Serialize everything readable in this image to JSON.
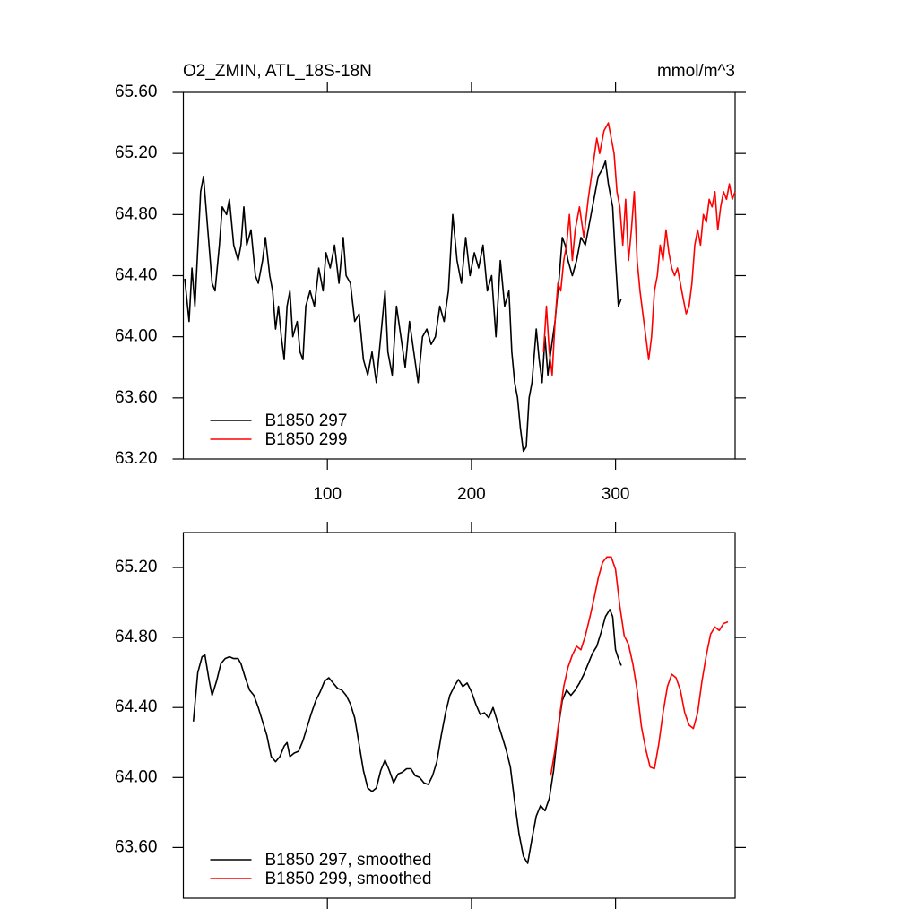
{
  "chart_data": [
    {
      "type": "line",
      "title": "O2_ZMIN, ATL_18S-18N",
      "units": "mmol/m^3",
      "xlim": [
        0,
        383
      ],
      "xticks": [
        100,
        200,
        300
      ],
      "show_xtick_labels": true,
      "ylim": [
        63.2,
        65.6
      ],
      "yticks": [
        {
          "value": 63.2,
          "label": "63.20"
        },
        {
          "value": 63.6,
          "label": "63.60"
        },
        {
          "value": 64.0,
          "label": "64.00"
        },
        {
          "value": 64.4,
          "label": "64.40"
        },
        {
          "value": 64.8,
          "label": "64.80"
        },
        {
          "value": 65.2,
          "label": "65.20"
        },
        {
          "value": 65.6,
          "label": "65.60"
        }
      ],
      "legend": "lower left",
      "series": [
        {
          "name": "B1850 297",
          "color": "#000000",
          "x": [
            1,
            4,
            6,
            8,
            12,
            14,
            17,
            20,
            22,
            25,
            27,
            30,
            32,
            35,
            38,
            40,
            42,
            44,
            47,
            50,
            52,
            55,
            57,
            60,
            62,
            64,
            66,
            68,
            70,
            72,
            74,
            76,
            79,
            81,
            83,
            85,
            88,
            91,
            94,
            97,
            99,
            102,
            105,
            108,
            111,
            113,
            116,
            119,
            122,
            125,
            128,
            131,
            134,
            137,
            140,
            142,
            145,
            148,
            151,
            154,
            157,
            160,
            163,
            166,
            169,
            172,
            175,
            178,
            181,
            184,
            187,
            190,
            193,
            196,
            199,
            202,
            205,
            208,
            211,
            214,
            217,
            220,
            223,
            226,
            228,
            230,
            232,
            234,
            236,
            238,
            240,
            242,
            245,
            247,
            249,
            251,
            253,
            255,
            258,
            261,
            263,
            265,
            267,
            270,
            273,
            276,
            279,
            282,
            285,
            288,
            291,
            293,
            295,
            298,
            300,
            302,
            304
          ],
          "values": [
            64.38,
            64.1,
            64.45,
            64.2,
            64.95,
            65.05,
            64.7,
            64.35,
            64.3,
            64.6,
            64.85,
            64.8,
            64.9,
            64.6,
            64.5,
            64.6,
            64.85,
            64.6,
            64.7,
            64.4,
            64.35,
            64.5,
            64.65,
            64.4,
            64.3,
            64.05,
            64.2,
            64.0,
            63.85,
            64.2,
            64.3,
            64.0,
            64.1,
            63.9,
            63.85,
            64.2,
            64.3,
            64.2,
            64.45,
            64.3,
            64.55,
            64.45,
            64.6,
            64.35,
            64.65,
            64.4,
            64.35,
            64.1,
            64.15,
            63.85,
            63.75,
            63.9,
            63.7,
            64.0,
            64.3,
            63.9,
            63.75,
            64.2,
            64.0,
            63.8,
            64.1,
            63.9,
            63.7,
            64.0,
            64.05,
            63.95,
            64.0,
            64.2,
            64.1,
            64.3,
            64.8,
            64.5,
            64.35,
            64.65,
            64.4,
            64.55,
            64.45,
            64.6,
            64.3,
            64.4,
            64.0,
            64.5,
            64.2,
            64.3,
            63.9,
            63.7,
            63.6,
            63.4,
            63.25,
            63.28,
            63.6,
            63.7,
            64.05,
            63.85,
            63.7,
            64.0,
            63.75,
            63.9,
            64.1,
            64.4,
            64.65,
            64.6,
            64.5,
            64.4,
            64.5,
            64.65,
            64.6,
            64.75,
            64.9,
            65.05,
            65.1,
            65.15,
            65.0,
            64.85,
            64.5,
            64.2,
            64.25
          ]
        },
        {
          "name": "B1850 299",
          "color": "#ff0000",
          "x": [
            250,
            252,
            254,
            256,
            258,
            260,
            262,
            264,
            266,
            268,
            270,
            272,
            275,
            278,
            281,
            284,
            287,
            289,
            292,
            295,
            297,
            299,
            301,
            303,
            305,
            307,
            309,
            311,
            313,
            315,
            317,
            319,
            321,
            323,
            325,
            327,
            329,
            331,
            333,
            335,
            337,
            339,
            341,
            343,
            345,
            347,
            349,
            351,
            353,
            355,
            357,
            359,
            361,
            363,
            365,
            367,
            369,
            371,
            373,
            375,
            377,
            379,
            381,
            383
          ],
          "values": [
            63.9,
            64.2,
            63.9,
            63.75,
            64.1,
            64.35,
            64.3,
            64.5,
            64.6,
            64.8,
            64.5,
            64.7,
            64.85,
            64.65,
            64.9,
            65.1,
            65.3,
            65.2,
            65.35,
            65.4,
            65.3,
            65.2,
            64.95,
            64.85,
            64.6,
            64.9,
            64.5,
            64.7,
            64.95,
            64.5,
            64.3,
            64.15,
            64.0,
            63.85,
            64.0,
            64.3,
            64.4,
            64.6,
            64.5,
            64.7,
            64.55,
            64.45,
            64.4,
            64.45,
            64.35,
            64.25,
            64.15,
            64.2,
            64.35,
            64.6,
            64.7,
            64.6,
            64.8,
            64.75,
            64.9,
            64.85,
            64.95,
            64.7,
            64.85,
            64.95,
            64.9,
            65.0,
            64.9,
            64.95
          ]
        }
      ]
    },
    {
      "type": "line",
      "xlim": [
        0,
        383
      ],
      "xticks": [
        100,
        200,
        300
      ],
      "show_xtick_labels": false,
      "ylim": [
        63.31,
        65.4
      ],
      "yticks": [
        {
          "value": 63.6,
          "label": "63.60"
        },
        {
          "value": 64.0,
          "label": "64.00"
        },
        {
          "value": 64.4,
          "label": "64.40"
        },
        {
          "value": 64.8,
          "label": "64.80"
        },
        {
          "value": 65.2,
          "label": "65.20"
        }
      ],
      "legend": "lower left",
      "series": [
        {
          "name": "B1850 297, smoothed",
          "color": "#000000",
          "x": [
            7,
            10,
            13,
            15,
            18,
            20,
            23,
            26,
            29,
            32,
            35,
            38,
            40,
            43,
            46,
            49,
            52,
            55,
            58,
            61,
            64,
            67,
            70,
            72,
            74,
            77,
            80,
            83,
            86,
            89,
            92,
            95,
            98,
            101,
            104,
            107,
            110,
            113,
            116,
            119,
            122,
            125,
            128,
            131,
            134,
            137,
            140,
            143,
            146,
            149,
            152,
            155,
            158,
            161,
            164,
            167,
            170,
            173,
            176,
            179,
            182,
            185,
            188,
            191,
            194,
            197,
            200,
            203,
            206,
            209,
            212,
            215,
            218,
            221,
            224,
            227,
            230,
            233,
            236,
            239,
            242,
            245,
            248,
            251,
            254,
            257,
            260,
            263,
            266,
            269,
            272,
            275,
            278,
            281,
            284,
            287,
            290,
            293,
            296,
            298,
            300,
            302,
            304
          ],
          "values": [
            64.32,
            64.6,
            64.69,
            64.7,
            64.55,
            64.47,
            64.55,
            64.65,
            64.68,
            64.69,
            64.68,
            64.68,
            64.65,
            64.57,
            64.5,
            64.47,
            64.4,
            64.32,
            64.24,
            64.12,
            64.09,
            64.12,
            64.18,
            64.2,
            64.12,
            64.14,
            64.15,
            64.21,
            64.29,
            64.37,
            64.44,
            64.49,
            64.55,
            64.57,
            64.54,
            64.51,
            64.5,
            64.47,
            64.42,
            64.34,
            64.19,
            64.04,
            63.94,
            63.92,
            63.94,
            64.04,
            64.1,
            64.04,
            63.97,
            64.02,
            64.03,
            64.05,
            64.05,
            64.01,
            64.0,
            63.97,
            63.96,
            64.01,
            64.09,
            64.24,
            64.37,
            64.47,
            64.52,
            64.56,
            64.52,
            64.54,
            64.49,
            64.42,
            64.36,
            64.37,
            64.34,
            64.4,
            64.32,
            64.24,
            64.16,
            64.06,
            63.86,
            63.68,
            63.55,
            63.51,
            63.65,
            63.78,
            63.84,
            63.81,
            63.88,
            64.04,
            64.27,
            64.44,
            64.5,
            64.47,
            64.5,
            64.54,
            64.59,
            64.65,
            64.71,
            64.75,
            64.83,
            64.92,
            64.96,
            64.92,
            64.73,
            64.68,
            64.64
          ]
        },
        {
          "name": "B1850 299, smoothed",
          "color": "#ff0000",
          "x": [
            255,
            258,
            261,
            264,
            267,
            270,
            273,
            276,
            279,
            282,
            285,
            288,
            291,
            294,
            297,
            300,
            303,
            306,
            309,
            312,
            315,
            318,
            321,
            324,
            327,
            330,
            333,
            336,
            339,
            342,
            345,
            348,
            351,
            354,
            357,
            360,
            363,
            366,
            369,
            372,
            375,
            378
          ],
          "values": [
            64.01,
            64.16,
            64.34,
            64.52,
            64.63,
            64.7,
            64.75,
            64.73,
            64.81,
            64.91,
            65.02,
            65.14,
            65.23,
            65.26,
            65.26,
            65.19,
            64.98,
            64.81,
            64.76,
            64.65,
            64.5,
            64.29,
            64.16,
            64.06,
            64.05,
            64.19,
            64.37,
            64.52,
            64.59,
            64.57,
            64.5,
            64.37,
            64.3,
            64.28,
            64.37,
            64.55,
            64.7,
            64.82,
            64.86,
            64.84,
            64.88,
            64.89
          ]
        }
      ]
    }
  ]
}
